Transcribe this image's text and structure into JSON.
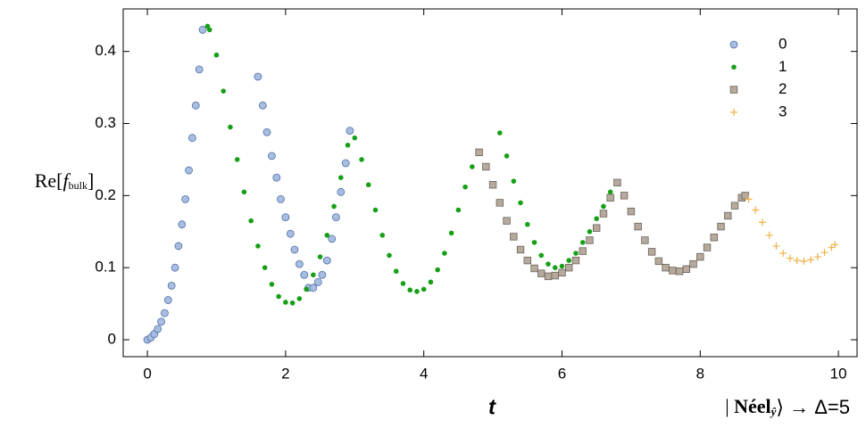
{
  "chart_data": {
    "type": "scatter",
    "x_label": "t",
    "y_label": [
      "Re[",
      "f",
      "bulk",
      "]"
    ],
    "annotation": [
      "| ",
      "Néel",
      "ŷ",
      "⟩ → Δ=5"
    ],
    "xlim": [
      -0.35,
      10.27
    ],
    "ylim": [
      -0.0235,
      0.459
    ],
    "xticks": [
      0,
      2,
      4,
      6,
      8,
      10
    ],
    "yticks": [
      0,
      0.1,
      0.2,
      0.3,
      0.4
    ],
    "legend": "upper right",
    "series": [
      {
        "name": "0",
        "marker": "circle",
        "color": "#a9bde0",
        "x": [
          0,
          0.05,
          0.1,
          0.15,
          0.2,
          0.25,
          0.3,
          0.35,
          0.4,
          0.45,
          0.5,
          0.55,
          0.6,
          0.65,
          0.7,
          0.75,
          0.8,
          1.6,
          1.67,
          1.73,
          1.8,
          1.87,
          1.93,
          2.0,
          2.07,
          2.13,
          2.2,
          2.27,
          2.33,
          2.4,
          2.47,
          2.53,
          2.6,
          2.67,
          2.73,
          2.8,
          2.87,
          2.93
        ],
        "values": [
          0,
          0.003,
          0.008,
          0.015,
          0.025,
          0.037,
          0.055,
          0.075,
          0.1,
          0.13,
          0.16,
          0.195,
          0.235,
          0.28,
          0.325,
          0.375,
          0.43,
          0.365,
          0.325,
          0.288,
          0.255,
          0.225,
          0.195,
          0.17,
          0.147,
          0.125,
          0.105,
          0.09,
          0.072,
          0.072,
          0.08,
          0.09,
          0.11,
          0.14,
          0.17,
          0.205,
          0.245,
          0.29
        ]
      },
      {
        "name": "1",
        "marker": "dot",
        "color": "#16a016",
        "x": [
          0.87,
          0.9,
          1.0,
          1.1,
          1.2,
          1.3,
          1.4,
          1.5,
          1.6,
          1.7,
          1.8,
          1.9,
          2.0,
          2.1,
          2.2,
          2.3,
          2.4,
          2.5,
          2.6,
          2.7,
          2.8,
          2.9,
          3.0,
          3.1,
          3.2,
          3.3,
          3.4,
          3.5,
          3.6,
          3.7,
          3.8,
          3.9,
          4.0,
          4.1,
          4.2,
          4.3,
          4.4,
          4.5,
          4.6,
          4.7,
          5.1,
          5.2,
          5.3,
          5.4,
          5.5,
          5.6,
          5.7,
          5.8,
          5.9,
          6.0,
          6.1,
          6.2,
          6.3,
          6.4,
          6.5,
          6.6,
          6.7
        ],
        "values": [
          0.435,
          0.43,
          0.395,
          0.345,
          0.295,
          0.25,
          0.205,
          0.165,
          0.13,
          0.1,
          0.077,
          0.06,
          0.052,
          0.051,
          0.057,
          0.07,
          0.09,
          0.115,
          0.145,
          0.185,
          0.225,
          0.27,
          0.28,
          0.25,
          0.215,
          0.18,
          0.145,
          0.117,
          0.095,
          0.078,
          0.069,
          0.067,
          0.07,
          0.08,
          0.097,
          0.12,
          0.148,
          0.18,
          0.212,
          0.24,
          0.287,
          0.255,
          0.22,
          0.19,
          0.16,
          0.135,
          0.117,
          0.105,
          0.1,
          0.102,
          0.11,
          0.12,
          0.135,
          0.15,
          0.168,
          0.185,
          0.205
        ]
      },
      {
        "name": "2",
        "marker": "square",
        "color": "#b5aa9c",
        "x": [
          4.8,
          4.9,
          5.0,
          5.1,
          5.2,
          5.3,
          5.4,
          5.5,
          5.6,
          5.7,
          5.8,
          5.9,
          6.0,
          6.1,
          6.2,
          6.3,
          6.4,
          6.5,
          6.6,
          6.7,
          6.8,
          6.9,
          7.0,
          7.1,
          7.2,
          7.3,
          7.4,
          7.5,
          7.6,
          7.7,
          7.8,
          7.9,
          8.0,
          8.1,
          8.2,
          8.3,
          8.4,
          8.5,
          8.6,
          8.65
        ],
        "values": [
          0.26,
          0.24,
          0.215,
          0.19,
          0.165,
          0.143,
          0.125,
          0.11,
          0.099,
          0.092,
          0.088,
          0.089,
          0.093,
          0.1,
          0.11,
          0.123,
          0.138,
          0.155,
          0.175,
          0.197,
          0.218,
          0.2,
          0.178,
          0.157,
          0.138,
          0.122,
          0.109,
          0.1,
          0.096,
          0.095,
          0.098,
          0.105,
          0.115,
          0.128,
          0.142,
          0.157,
          0.172,
          0.186,
          0.197,
          0.2
        ]
      },
      {
        "name": "3",
        "marker": "plus",
        "color": "#f2b04a",
        "x": [
          8.7,
          8.8,
          8.9,
          9.0,
          9.1,
          9.2,
          9.3,
          9.4,
          9.5,
          9.6,
          9.7,
          9.8,
          9.9,
          9.95
        ],
        "values": [
          0.195,
          0.18,
          0.163,
          0.145,
          0.13,
          0.12,
          0.113,
          0.11,
          0.109,
          0.111,
          0.115,
          0.121,
          0.128,
          0.132
        ]
      }
    ]
  }
}
